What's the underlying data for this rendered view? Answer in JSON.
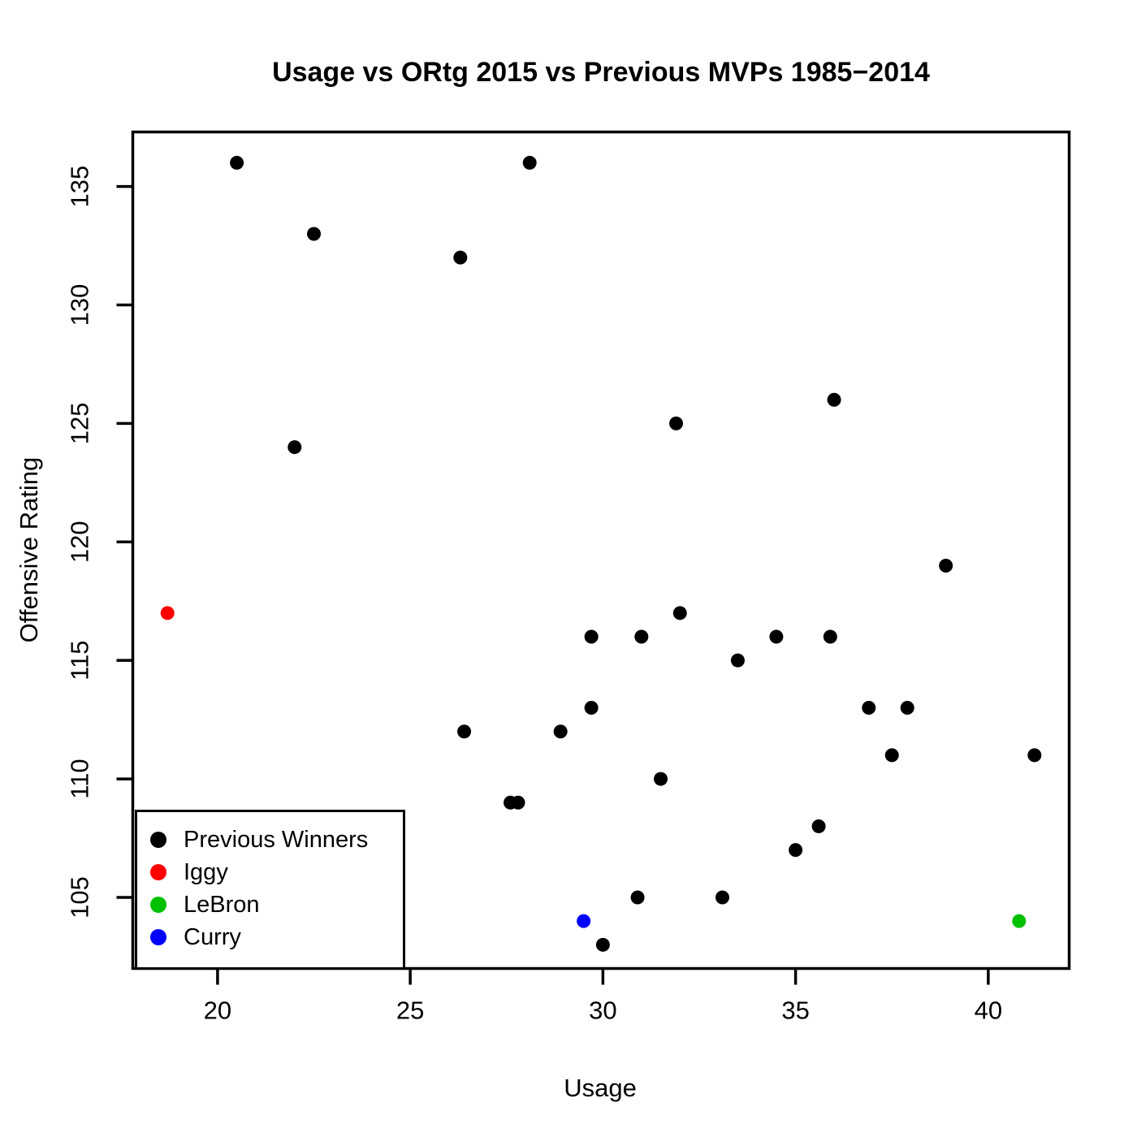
{
  "chart_data": {
    "type": "scatter",
    "title": "Usage vs ORtg 2015 vs Previous MVPs 1985−2014",
    "xlabel": "Usage",
    "ylabel": "Offensive Rating",
    "x_ticks": [
      20,
      25,
      30,
      35,
      40
    ],
    "y_ticks": [
      105,
      110,
      115,
      120,
      125,
      130,
      135
    ],
    "xlim": [
      17.8,
      42.1
    ],
    "ylim": [
      102.0,
      137.3
    ],
    "grid": false,
    "legend_position": "bottomleft",
    "series": [
      {
        "name": "Previous Winners",
        "color": "#000000",
        "points": [
          [
            20.5,
            136
          ],
          [
            28.1,
            136
          ],
          [
            22.5,
            133
          ],
          [
            26.3,
            132
          ],
          [
            22.0,
            124
          ],
          [
            31.9,
            125
          ],
          [
            36.0,
            126
          ],
          [
            38.9,
            119
          ],
          [
            32.0,
            117
          ],
          [
            29.7,
            116
          ],
          [
            31.0,
            116
          ],
          [
            34.5,
            116
          ],
          [
            35.9,
            116
          ],
          [
            33.5,
            115
          ],
          [
            29.7,
            113
          ],
          [
            36.9,
            113
          ],
          [
            37.9,
            113
          ],
          [
            26.4,
            112
          ],
          [
            28.9,
            112
          ],
          [
            37.5,
            111
          ],
          [
            41.2,
            111
          ],
          [
            31.5,
            110
          ],
          [
            27.6,
            109
          ],
          [
            27.8,
            109
          ],
          [
            35.6,
            108
          ],
          [
            35.0,
            107
          ],
          [
            30.9,
            105
          ],
          [
            33.1,
            105
          ],
          [
            30.0,
            103
          ]
        ]
      },
      {
        "name": "Iggy",
        "color": "#FF0000",
        "points": [
          [
            18.7,
            117
          ]
        ]
      },
      {
        "name": "LeBron",
        "color": "#00C000",
        "points": [
          [
            40.8,
            104
          ]
        ]
      },
      {
        "name": "Curry",
        "color": "#0000FF",
        "points": [
          [
            29.5,
            104
          ]
        ]
      }
    ]
  }
}
